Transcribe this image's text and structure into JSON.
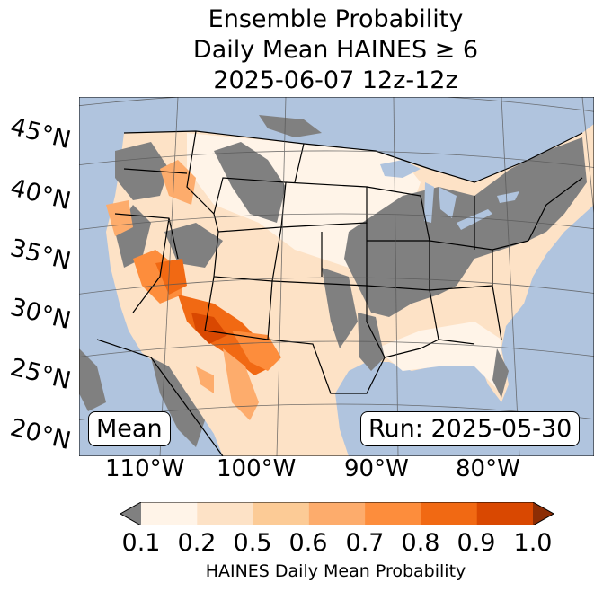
{
  "title_lines": [
    "Ensemble Probability",
    "Daily Mean HAINES ≥ 6",
    "2025-06-07 12z-12z"
  ],
  "lat_labels": [
    "45°N",
    "40°N",
    "35°N",
    "30°N",
    "25°N",
    "20°N"
  ],
  "lon_labels": [
    "110°W",
    "100°W",
    "90°W",
    "80°W"
  ],
  "legend_boxes": {
    "left": "Mean",
    "right": "Run: 2025-05-30"
  },
  "colorbar": {
    "ticks": [
      "0.1",
      "0.2",
      "0.5",
      "0.6",
      "0.7",
      "0.8",
      "0.9",
      "1.0"
    ],
    "label": "HAINES Daily Mean Probability",
    "colors": [
      "#fff4e8",
      "#fde2c6",
      "#fccb96",
      "#fdac6c",
      "#fd8d3c",
      "#f16913",
      "#d94801"
    ],
    "under_color": "#808080",
    "over_color": "#8c2d04"
  },
  "map_colors": {
    "ocean": "#b0c4de",
    "land_low": "#fff4e8",
    "land_mid": "#fde2c6",
    "masked": "#808080",
    "lake": "#b0c4de"
  }
}
